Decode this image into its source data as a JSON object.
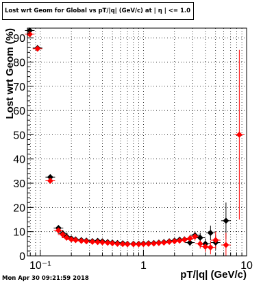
{
  "title": "Lost wrt Geom for Global vs pT/|q| (GeV/c) at | η | <= 1.0",
  "footer": "Mon Apr 30 09:21:59 2018",
  "chart_data": {
    "type": "scatter",
    "xlabel": "pT/|q| (GeV/c)",
    "ylabel": "Lost wrt Geom (%)",
    "xscale": "log",
    "xlim": [
      0.075,
      10
    ],
    "ylim": [
      0,
      94
    ],
    "grid": true,
    "legend": "none",
    "x_ticks": [
      {
        "v": 0.1,
        "label": "10⁻¹"
      },
      {
        "v": 1,
        "label": "1"
      },
      {
        "v": 10,
        "label": "10"
      }
    ],
    "y_ticks": [
      0,
      10,
      20,
      30,
      40,
      50,
      60,
      70,
      80,
      90
    ],
    "series": [
      {
        "color": "#000000",
        "marker": "diamond",
        "points": [
          {
            "x": 0.079,
            "y": 93.0,
            "err": 0.8
          },
          {
            "x": 0.094,
            "y": 85.8,
            "err": 0.8
          },
          {
            "x": 0.125,
            "y": 32.5,
            "err": 1.0
          },
          {
            "x": 0.15,
            "y": 11.5,
            "err": 0.8
          },
          {
            "x": 0.165,
            "y": 9.3,
            "err": 0.6
          },
          {
            "x": 0.18,
            "y": 8.0,
            "err": 0.5
          },
          {
            "x": 0.2,
            "y": 7.2,
            "err": 0.5
          },
          {
            "x": 0.22,
            "y": 6.8,
            "err": 0.5
          },
          {
            "x": 0.25,
            "y": 6.5,
            "err": 0.4
          },
          {
            "x": 0.28,
            "y": 6.3,
            "err": 0.4
          },
          {
            "x": 0.32,
            "y": 6.1,
            "err": 0.4
          },
          {
            "x": 0.36,
            "y": 6.2,
            "err": 0.4
          },
          {
            "x": 0.4,
            "y": 6.0,
            "err": 0.4
          },
          {
            "x": 0.45,
            "y": 5.7,
            "err": 0.4
          },
          {
            "x": 0.5,
            "y": 5.5,
            "err": 0.4
          },
          {
            "x": 0.56,
            "y": 5.3,
            "err": 0.4
          },
          {
            "x": 0.63,
            "y": 5.2,
            "err": 0.4
          },
          {
            "x": 0.7,
            "y": 5.0,
            "err": 0.4
          },
          {
            "x": 0.8,
            "y": 5.0,
            "err": 0.4
          },
          {
            "x": 0.9,
            "y": 5.0,
            "err": 0.4
          },
          {
            "x": 1.0,
            "y": 5.1,
            "err": 0.5
          },
          {
            "x": 1.12,
            "y": 5.2,
            "err": 0.5
          },
          {
            "x": 1.26,
            "y": 5.3,
            "err": 0.5
          },
          {
            "x": 1.41,
            "y": 5.5,
            "err": 0.6
          },
          {
            "x": 1.58,
            "y": 5.7,
            "err": 0.7
          },
          {
            "x": 1.78,
            "y": 6.0,
            "err": 0.8
          },
          {
            "x": 2.0,
            "y": 6.3,
            "err": 0.9
          },
          {
            "x": 2.24,
            "y": 6.7,
            "err": 1.0
          },
          {
            "x": 2.5,
            "y": 6.8,
            "err": 1.2
          },
          {
            "x": 2.82,
            "y": 5.5,
            "err": 1.4
          },
          {
            "x": 3.16,
            "y": 8.5,
            "err": 1.7
          },
          {
            "x": 3.55,
            "y": 7.5,
            "err": 2.0
          },
          {
            "x": 3.98,
            "y": 5.0,
            "err": 2.2
          },
          {
            "x": 4.47,
            "y": 9.5,
            "err": 3.0
          },
          {
            "x": 5.01,
            "y": 5.5,
            "err": 3.0
          },
          {
            "x": 6.31,
            "y": 14.5,
            "err": 7.5
          }
        ]
      },
      {
        "color": "#ff0000",
        "marker": "diamond",
        "points": [
          {
            "x": 0.079,
            "y": 91.5,
            "err": 0.8
          },
          {
            "x": 0.094,
            "y": 85.5,
            "err": 0.8
          },
          {
            "x": 0.125,
            "y": 31.0,
            "err": 1.0
          },
          {
            "x": 0.15,
            "y": 10.5,
            "err": 0.8
          },
          {
            "x": 0.165,
            "y": 8.8,
            "err": 0.6
          },
          {
            "x": 0.18,
            "y": 7.5,
            "err": 0.5
          },
          {
            "x": 0.2,
            "y": 6.8,
            "err": 0.5
          },
          {
            "x": 0.22,
            "y": 6.5,
            "err": 0.5
          },
          {
            "x": 0.25,
            "y": 6.2,
            "err": 0.4
          },
          {
            "x": 0.28,
            "y": 6.0,
            "err": 0.4
          },
          {
            "x": 0.32,
            "y": 5.8,
            "err": 0.4
          },
          {
            "x": 0.36,
            "y": 5.7,
            "err": 0.4
          },
          {
            "x": 0.4,
            "y": 5.6,
            "err": 0.4
          },
          {
            "x": 0.45,
            "y": 5.4,
            "err": 0.4
          },
          {
            "x": 0.5,
            "y": 5.2,
            "err": 0.4
          },
          {
            "x": 0.56,
            "y": 5.0,
            "err": 0.4
          },
          {
            "x": 0.63,
            "y": 4.9,
            "err": 0.4
          },
          {
            "x": 0.7,
            "y": 4.8,
            "err": 0.4
          },
          {
            "x": 0.8,
            "y": 4.8,
            "err": 0.4
          },
          {
            "x": 0.9,
            "y": 4.8,
            "err": 0.4
          },
          {
            "x": 1.0,
            "y": 4.9,
            "err": 0.5
          },
          {
            "x": 1.12,
            "y": 5.0,
            "err": 0.5
          },
          {
            "x": 1.26,
            "y": 5.1,
            "err": 0.5
          },
          {
            "x": 1.41,
            "y": 5.3,
            "err": 0.6
          },
          {
            "x": 1.58,
            "y": 5.5,
            "err": 0.7
          },
          {
            "x": 1.78,
            "y": 5.8,
            "err": 0.8
          },
          {
            "x": 2.0,
            "y": 6.0,
            "err": 0.9
          },
          {
            "x": 2.24,
            "y": 6.3,
            "err": 1.0
          },
          {
            "x": 2.5,
            "y": 6.7,
            "err": 1.2
          },
          {
            "x": 2.82,
            "y": 7.2,
            "err": 1.4
          },
          {
            "x": 3.16,
            "y": 8.0,
            "err": 1.7
          },
          {
            "x": 3.55,
            "y": 5.0,
            "err": 2.0
          },
          {
            "x": 3.98,
            "y": 3.8,
            "err": 2.2
          },
          {
            "x": 4.47,
            "y": 3.5,
            "err": 2.8
          },
          {
            "x": 5.01,
            "y": 6.5,
            "err": 3.5
          },
          {
            "x": 6.31,
            "y": 4.5,
            "err": 5.0
          },
          {
            "x": 8.5,
            "y": 50.0,
            "err": 35.0
          }
        ]
      }
    ]
  }
}
